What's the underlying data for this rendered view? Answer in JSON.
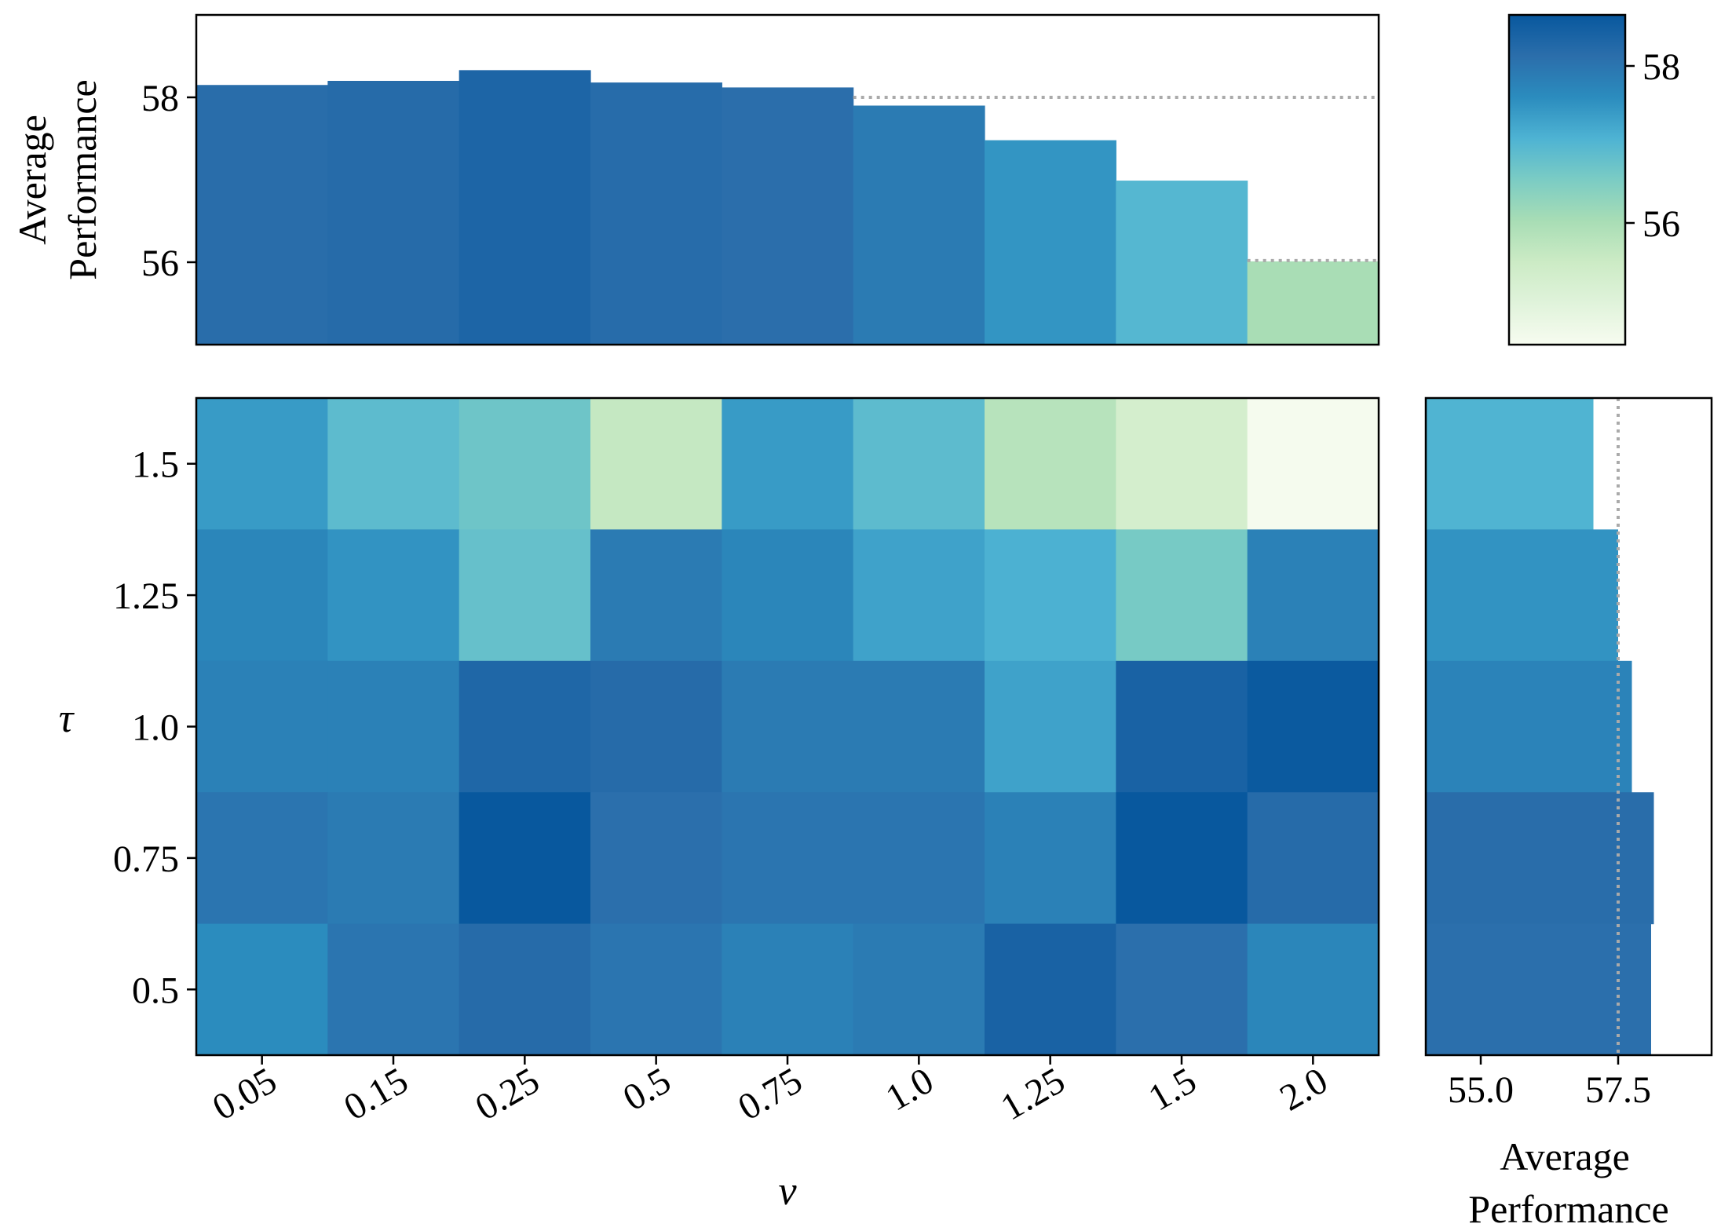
{
  "chart_data": [
    {
      "type": "bar",
      "title": "",
      "xlabel": "",
      "ylabel": "Average\nPerformance",
      "categories": [
        "0.05",
        "0.15",
        "0.25",
        "0.5",
        "0.75",
        "1.0",
        "1.25",
        "1.5",
        "2.0"
      ],
      "values": [
        58.15,
        58.2,
        58.33,
        58.18,
        58.12,
        57.9,
        57.48,
        56.99,
        56.01
      ],
      "ylim": [
        55.0,
        59.0
      ],
      "yticks": [
        "56",
        "58"
      ],
      "ytick_values": [
        56,
        58
      ],
      "reference_lines": [
        {
          "from_category": "0.75",
          "value": 58.0
        },
        {
          "from_category": "1.5",
          "value": 56.02
        }
      ]
    },
    {
      "type": "heatmap",
      "title": "",
      "xlabel": "ν",
      "ylabel": "τ",
      "x": [
        "0.05",
        "0.15",
        "0.25",
        "0.5",
        "0.75",
        "1.0",
        "1.25",
        "1.5",
        "2.0"
      ],
      "y": [
        "1.5",
        "1.25",
        "1.0",
        "0.75",
        "0.5"
      ],
      "values": [
        [
          57.4,
          56.9,
          56.7,
          55.6,
          57.4,
          56.9,
          55.8,
          55.3,
          54.5
        ],
        [
          57.7,
          57.5,
          56.8,
          57.9,
          57.7,
          57.3,
          57.1,
          56.6,
          57.8
        ],
        [
          57.8,
          57.8,
          58.3,
          58.2,
          57.9,
          57.9,
          57.3,
          58.4,
          58.6
        ],
        [
          58.0,
          57.9,
          58.7,
          58.1,
          58.0,
          58.0,
          57.8,
          58.7,
          58.2
        ],
        [
          57.6,
          58.0,
          58.2,
          58.0,
          57.8,
          57.9,
          58.4,
          58.1,
          57.7
        ]
      ],
      "grid": false
    },
    {
      "type": "bar",
      "orientation": "horizontal",
      "title": "",
      "xlabel": "Average\nPerformance",
      "ylabel": "",
      "categories": [
        "1.5",
        "1.25",
        "1.0",
        "0.75",
        "0.5"
      ],
      "values": [
        57.05,
        57.5,
        57.75,
        58.15,
        58.1
      ],
      "xlim": [
        54.0,
        59.2
      ],
      "xticks": [
        "55.0",
        "57.5"
      ],
      "xtick_values": [
        55.0,
        57.5
      ],
      "reference_line": 57.5
    },
    {
      "type": "colorbar",
      "title": "",
      "range": [
        54.45,
        58.65
      ],
      "ticks": [
        "56",
        "58"
      ],
      "tick_values": [
        56,
        58
      ],
      "colors": [
        "#f7fcf0",
        "#e0f3db",
        "#ccebc5",
        "#a8ddb5",
        "#7bccc4",
        "#4eb3d3",
        "#2b8cbe",
        "#2b6eab",
        "#08589e"
      ]
    }
  ]
}
